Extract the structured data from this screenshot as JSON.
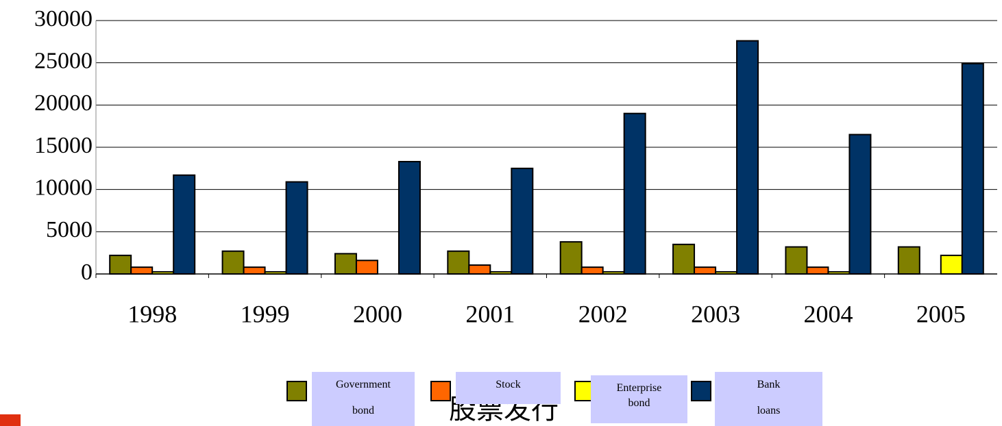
{
  "chart_data": {
    "type": "bar",
    "categories": [
      "1998",
      "1999",
      "2000",
      "2001",
      "2002",
      "2003",
      "2004",
      "2005"
    ],
    "series": [
      {
        "name": "Government bond",
        "color": "#808000",
        "values": [
          2200,
          2700,
          2400,
          2700,
          3800,
          3500,
          3200,
          3200
        ]
      },
      {
        "name": "Stock",
        "color": "#ff6600",
        "values": [
          800,
          800,
          1600,
          1050,
          800,
          800,
          800,
          0
        ]
      },
      {
        "name": "Enterprise bond",
        "color": "#ffff00",
        "values": [
          250,
          250,
          0,
          250,
          250,
          250,
          250,
          2200
        ]
      },
      {
        "name": "Bank loans",
        "color": "#003366",
        "values": [
          11700,
          10900,
          13300,
          12500,
          19000,
          27600,
          16500,
          24900
        ]
      }
    ],
    "ylim": [
      0,
      30000
    ],
    "yticks": [
      0,
      5000,
      10000,
      15000,
      20000,
      25000,
      30000
    ],
    "grid": true,
    "legend": "bottom",
    "annotation": "股票发行"
  }
}
